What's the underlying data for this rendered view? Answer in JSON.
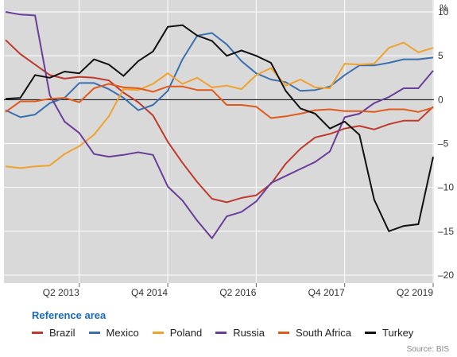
{
  "chart_data": {
    "type": "line",
    "unit": "%",
    "ylim": [
      -20,
      10
    ],
    "yticks": [
      10,
      5,
      0,
      -5,
      -10,
      -15,
      -20
    ],
    "ytick_labels": [
      "10",
      "5",
      "0",
      "–5",
      "–10",
      "–15",
      "–20"
    ],
    "x_start": 2012.0,
    "x_step": 0.25,
    "xticks": [
      {
        "x": 2013.25,
        "label": "Q2 2013"
      },
      {
        "x": 2014.75,
        "label": "Q4 2014"
      },
      {
        "x": 2016.25,
        "label": "Q2 2016"
      },
      {
        "x": 2017.75,
        "label": "Q4 2017"
      },
      {
        "x": 2019.25,
        "label": "Q2 2019"
      }
    ],
    "legend_title": "Reference area",
    "series": [
      {
        "name": "Brazil",
        "color": "#c0392b",
        "values": [
          6.8,
          5.2,
          4.0,
          2.8,
          2.4,
          2.6,
          2.5,
          2.2,
          0.8,
          -0.3,
          -1.8,
          -4.8,
          -7.2,
          -9.4,
          -11.3,
          -11.7,
          -11.2,
          -10.9,
          -9.6,
          -7.3,
          -5.6,
          -4.3,
          -3.9,
          -3.3,
          -3.0,
          -3.4,
          -2.8,
          -2.4,
          -2.4,
          -0.8
        ]
      },
      {
        "name": "Mexico",
        "color": "#3a6fb0",
        "values": [
          -1.2,
          -2.0,
          -1.7,
          -0.4,
          0.2,
          1.9,
          1.9,
          1.2,
          0.2,
          -1.2,
          -0.6,
          1.0,
          4.6,
          7.3,
          7.6,
          6.3,
          4.4,
          3.0,
          2.3,
          2.0,
          1.0,
          1.1,
          1.5,
          2.8,
          3.9,
          3.9,
          4.2,
          4.6,
          4.6,
          4.8
        ]
      },
      {
        "name": "Poland",
        "color": "#f0a22e",
        "values": [
          -7.6,
          -7.8,
          -7.6,
          -7.5,
          -6.2,
          -5.3,
          -4.0,
          -1.9,
          1.2,
          1.1,
          1.8,
          3.0,
          1.8,
          2.5,
          1.4,
          1.6,
          1.2,
          2.8,
          3.6,
          1.6,
          2.3,
          1.4,
          1.3,
          4.1,
          4.0,
          4.1,
          5.9,
          6.5,
          5.4,
          5.9
        ]
      },
      {
        "name": "Russia",
        "color": "#6a3d9a",
        "values": [
          10.0,
          9.7,
          9.6,
          0.5,
          -2.5,
          -3.8,
          -6.2,
          -6.5,
          -6.3,
          -6.0,
          -6.3,
          -9.9,
          -11.5,
          -13.8,
          -15.8,
          -13.3,
          -12.8,
          -11.6,
          -9.5,
          -8.7,
          -7.9,
          -7.1,
          -5.9,
          -2.0,
          -1.6,
          -0.4,
          0.3,
          1.3,
          1.3,
          3.3
        ]
      },
      {
        "name": "South Africa",
        "color": "#e05a1b",
        "values": [
          -1.4,
          -0.2,
          -0.2,
          0.1,
          0.2,
          -0.3,
          1.3,
          1.8,
          1.4,
          1.3,
          0.9,
          1.5,
          1.5,
          1.1,
          1.1,
          -0.6,
          -0.6,
          -0.8,
          -2.1,
          -1.9,
          -1.6,
          -1.2,
          -1.1,
          -1.3,
          -1.3,
          -1.4,
          -1.1,
          -1.1,
          -1.4,
          -0.9
        ]
      },
      {
        "name": "Turkey",
        "color": "#111111",
        "values": [
          0.1,
          0.2,
          2.8,
          2.5,
          3.2,
          3.0,
          4.6,
          4.0,
          2.7,
          4.4,
          5.5,
          8.3,
          8.5,
          7.3,
          6.7,
          5.0,
          5.6,
          5.0,
          4.2,
          1.0,
          -1.0,
          -1.6,
          -3.3,
          -2.5,
          -4.0,
          -11.4,
          -15.0,
          -14.4,
          -14.2,
          -6.5
        ]
      }
    ]
  },
  "source": "Source: BIS"
}
